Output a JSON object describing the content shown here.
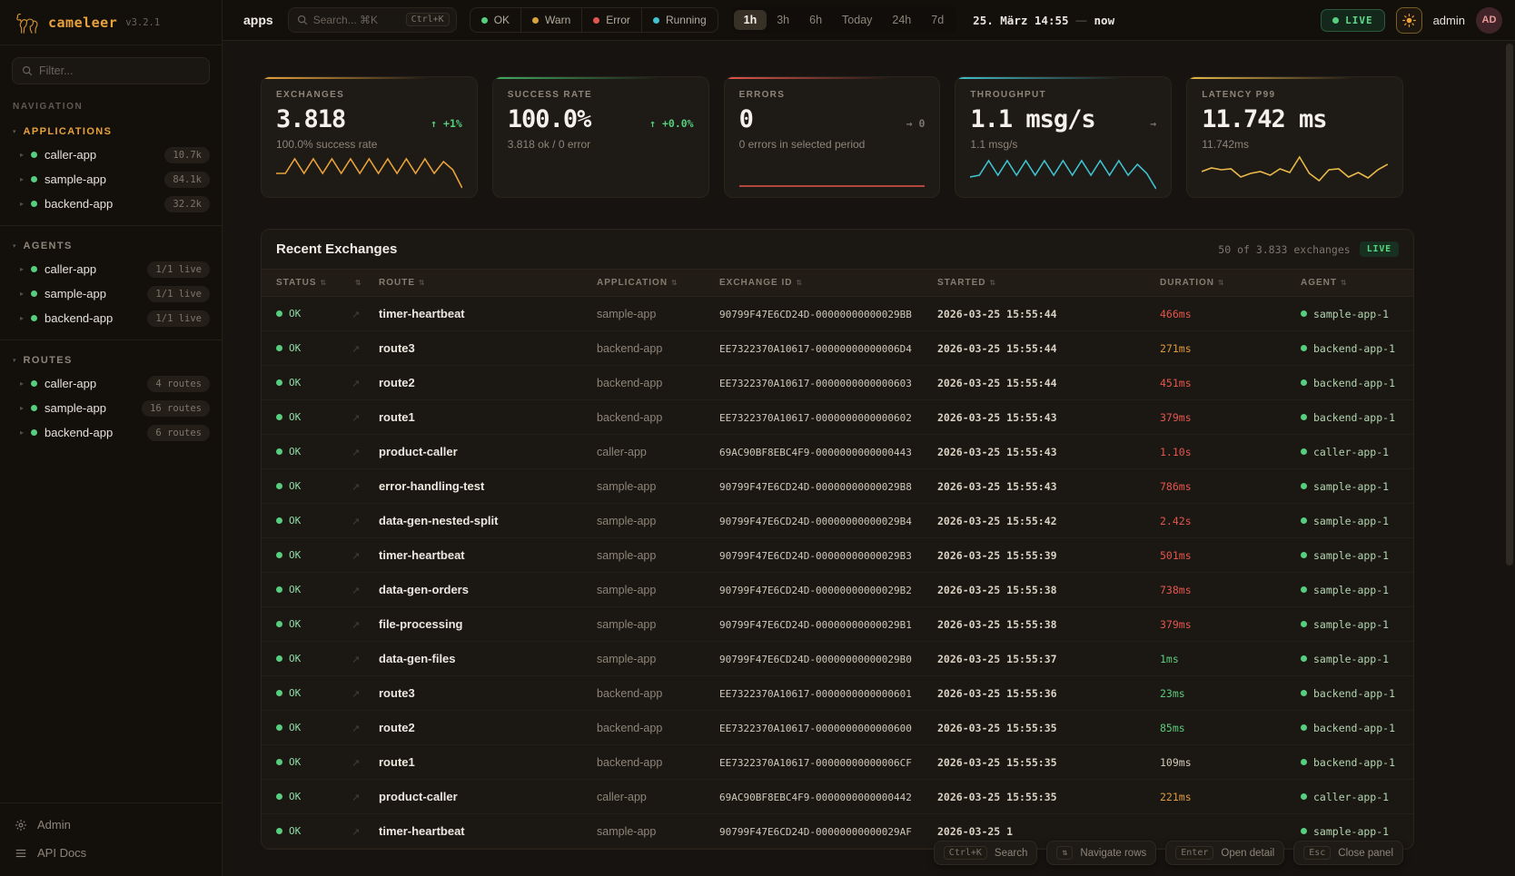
{
  "brand": {
    "name": "cameleer",
    "version": "v3.2.1"
  },
  "sidebar": {
    "filter_placeholder": "Filter...",
    "nav_label": "NAVIGATION",
    "sections": [
      {
        "label": "APPLICATIONS",
        "accent": true,
        "items": [
          {
            "name": "caller-app",
            "badge": "10.7k"
          },
          {
            "name": "sample-app",
            "badge": "84.1k"
          },
          {
            "name": "backend-app",
            "badge": "32.2k"
          }
        ]
      },
      {
        "label": "AGENTS",
        "accent": false,
        "items": [
          {
            "name": "caller-app",
            "badge": "1/1 live"
          },
          {
            "name": "sample-app",
            "badge": "1/1 live"
          },
          {
            "name": "backend-app",
            "badge": "1/1 live"
          }
        ]
      },
      {
        "label": "ROUTES",
        "accent": false,
        "items": [
          {
            "name": "caller-app",
            "badge": "4 routes"
          },
          {
            "name": "sample-app",
            "badge": "16 routes"
          },
          {
            "name": "backend-app",
            "badge": "6 routes"
          }
        ]
      }
    ],
    "footer": [
      {
        "label": "Admin",
        "icon": "gear-icon"
      },
      {
        "label": "API Docs",
        "icon": "list-icon"
      }
    ]
  },
  "topbar": {
    "context_label": "apps",
    "search": {
      "placeholder": "Search... ⌘K",
      "kbd": "Ctrl+K"
    },
    "status_filters": [
      {
        "label": "OK",
        "color": "#57cd7f"
      },
      {
        "label": "Warn",
        "color": "#d9a23c"
      },
      {
        "label": "Error",
        "color": "#e4564d"
      },
      {
        "label": "Running",
        "color": "#3fc1cf"
      }
    ],
    "time_ranges": [
      {
        "label": "1h",
        "active": true
      },
      {
        "label": "3h",
        "active": false
      },
      {
        "label": "6h",
        "active": false
      },
      {
        "label": "Today",
        "active": false
      },
      {
        "label": "24h",
        "active": false
      },
      {
        "label": "7d",
        "active": false
      }
    ],
    "date_label": "25. März 14:55",
    "date_sep": "—",
    "now_label": "now",
    "live_label": "LIVE",
    "user": "admin",
    "avatar": "AD"
  },
  "cards": [
    {
      "title": "EXCHANGES",
      "value": "3.818",
      "trend": "↑ +1%",
      "trend_color": "green",
      "subtitle": "100.0% success rate",
      "accent": "#e9a23b",
      "spark": [
        26,
        26,
        10,
        26,
        10,
        26,
        10,
        26,
        10,
        26,
        10,
        26,
        10,
        26,
        10,
        26,
        10,
        26,
        13,
        22,
        42
      ]
    },
    {
      "title": "SUCCESS RATE",
      "value": "100.0%",
      "trend": "↑ +0.0%",
      "trend_color": "green",
      "subtitle": "3.818 ok / 0 error",
      "accent": "#3fae63",
      "spark": null
    },
    {
      "title": "ERRORS",
      "value": "0",
      "trend": "→ 0",
      "trend_color": "muted",
      "subtitle": "0 errors in selected period",
      "accent": "#e4564d",
      "spark": [
        40,
        40
      ]
    },
    {
      "title": "THROUGHPUT",
      "value": "1.1 msg/s",
      "trend": "→",
      "trend_color": "muted",
      "subtitle": "1.1 msg/s",
      "accent": "#3fc1cf",
      "spark": [
        30,
        28,
        12,
        28,
        12,
        28,
        12,
        28,
        12,
        28,
        12,
        28,
        12,
        28,
        12,
        28,
        12,
        28,
        16,
        26,
        43
      ]
    },
    {
      "title": "LATENCY P99",
      "value": "11.742 ms",
      "trend": "",
      "trend_color": "muted",
      "subtitle": "11.742ms",
      "accent": "#eab94a",
      "spark": [
        24,
        20,
        22,
        21,
        30,
        26,
        24,
        28,
        21,
        25,
        8,
        26,
        34,
        22,
        21,
        30,
        25,
        31,
        22,
        16
      ]
    }
  ],
  "table": {
    "title": "Recent Exchanges",
    "meta": "50 of 3.833 exchanges",
    "live_label": "LIVE",
    "columns": [
      "STATUS",
      "",
      "ROUTE",
      "APPLICATION",
      "EXCHANGE ID",
      "STARTED",
      "DURATION",
      "AGENT"
    ],
    "rows": [
      {
        "status": "OK",
        "route": "timer-heartbeat",
        "app": "sample-app",
        "id": "90799F47E6CD24D-00000000000029BB",
        "started": "2026-03-25 15:55:44",
        "duration": "466ms",
        "duration_color": "red",
        "agent": "sample-app-1"
      },
      {
        "status": "OK",
        "route": "route3",
        "app": "backend-app",
        "id": "EE7322370A10617-00000000000006D4",
        "started": "2026-03-25 15:55:44",
        "duration": "271ms",
        "duration_color": "orange",
        "agent": "backend-app-1"
      },
      {
        "status": "OK",
        "route": "route2",
        "app": "backend-app",
        "id": "EE7322370A10617-0000000000000603",
        "started": "2026-03-25 15:55:44",
        "duration": "451ms",
        "duration_color": "red",
        "agent": "backend-app-1"
      },
      {
        "status": "OK",
        "route": "route1",
        "app": "backend-app",
        "id": "EE7322370A10617-0000000000000602",
        "started": "2026-03-25 15:55:43",
        "duration": "379ms",
        "duration_color": "red",
        "agent": "backend-app-1"
      },
      {
        "status": "OK",
        "route": "product-caller",
        "app": "caller-app",
        "id": "69AC90BF8EBC4F9-0000000000000443",
        "started": "2026-03-25 15:55:43",
        "duration": "1.10s",
        "duration_color": "red",
        "agent": "caller-app-1"
      },
      {
        "status": "OK",
        "route": "error-handling-test",
        "app": "sample-app",
        "id": "90799F47E6CD24D-00000000000029B8",
        "started": "2026-03-25 15:55:43",
        "duration": "786ms",
        "duration_color": "red",
        "agent": "sample-app-1"
      },
      {
        "status": "OK",
        "route": "data-gen-nested-split",
        "app": "sample-app",
        "id": "90799F47E6CD24D-00000000000029B4",
        "started": "2026-03-25 15:55:42",
        "duration": "2.42s",
        "duration_color": "red",
        "agent": "sample-app-1"
      },
      {
        "status": "OK",
        "route": "timer-heartbeat",
        "app": "sample-app",
        "id": "90799F47E6CD24D-00000000000029B3",
        "started": "2026-03-25 15:55:39",
        "duration": "501ms",
        "duration_color": "red",
        "agent": "sample-app-1"
      },
      {
        "status": "OK",
        "route": "data-gen-orders",
        "app": "sample-app",
        "id": "90799F47E6CD24D-00000000000029B2",
        "started": "2026-03-25 15:55:38",
        "duration": "738ms",
        "duration_color": "red",
        "agent": "sample-app-1"
      },
      {
        "status": "OK",
        "route": "file-processing",
        "app": "sample-app",
        "id": "90799F47E6CD24D-00000000000029B1",
        "started": "2026-03-25 15:55:38",
        "duration": "379ms",
        "duration_color": "red",
        "agent": "sample-app-1"
      },
      {
        "status": "OK",
        "route": "data-gen-files",
        "app": "sample-app",
        "id": "90799F47E6CD24D-00000000000029B0",
        "started": "2026-03-25 15:55:37",
        "duration": "1ms",
        "duration_color": "green",
        "agent": "sample-app-1"
      },
      {
        "status": "OK",
        "route": "route3",
        "app": "backend-app",
        "id": "EE7322370A10617-0000000000000601",
        "started": "2026-03-25 15:55:36",
        "duration": "23ms",
        "duration_color": "green",
        "agent": "backend-app-1"
      },
      {
        "status": "OK",
        "route": "route2",
        "app": "backend-app",
        "id": "EE7322370A10617-0000000000000600",
        "started": "2026-03-25 15:55:35",
        "duration": "85ms",
        "duration_color": "green",
        "agent": "backend-app-1"
      },
      {
        "status": "OK",
        "route": "route1",
        "app": "backend-app",
        "id": "EE7322370A10617-00000000000006CF",
        "started": "2026-03-25 15:55:35",
        "duration": "109ms",
        "duration_color": "neutral",
        "agent": "backend-app-1"
      },
      {
        "status": "OK",
        "route": "product-caller",
        "app": "caller-app",
        "id": "69AC90BF8EBC4F9-0000000000000442",
        "started": "2026-03-25 15:55:35",
        "duration": "221ms",
        "duration_color": "orange",
        "agent": "caller-app-1"
      },
      {
        "status": "OK",
        "route": "timer-heartbeat",
        "app": "sample-app",
        "id": "90799F47E6CD24D-00000000000029AF",
        "started": "2026-03-25 1",
        "duration": "",
        "duration_color": "neutral",
        "agent": "sample-app-1"
      }
    ]
  },
  "hints": [
    {
      "kbd": "Ctrl+K",
      "label": "Search"
    },
    {
      "kbd": "⇅",
      "label": "Navigate rows"
    },
    {
      "kbd": "Enter",
      "label": "Open detail"
    },
    {
      "kbd": "Esc",
      "label": "Close panel"
    }
  ]
}
